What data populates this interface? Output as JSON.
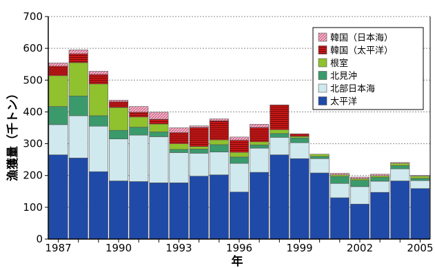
{
  "chart_data": {
    "type": "bar",
    "stacked": true,
    "xlabel": "年",
    "ylabel": "漁獲量（千トン）",
    "ylim": [
      0,
      700
    ],
    "yticks": [
      0,
      100,
      200,
      300,
      400,
      500,
      600,
      700
    ],
    "xtick_labels": [
      "1987",
      "1990",
      "1993",
      "1996",
      "1999",
      "2002",
      "2005"
    ],
    "grid": "horizontal-dashed",
    "legend_position": "top-right",
    "categories": [
      "1987",
      "1988",
      "1989",
      "1990",
      "1991",
      "1992",
      "1993",
      "1994",
      "1995",
      "1996",
      "1997",
      "1998",
      "1999",
      "2000",
      "2001",
      "2002",
      "2003",
      "2004",
      "2005"
    ],
    "series": [
      {
        "name": "太平洋",
        "color": "#1f4aa8",
        "values": [
          265,
          255,
          212,
          183,
          181,
          177,
          177,
          198,
          202,
          148,
          210,
          265,
          253,
          208,
          130,
          110,
          147,
          183,
          159
        ]
      },
      {
        "name": "北部日本海",
        "color": "#cfe9ee",
        "values": [
          95,
          133,
          143,
          132,
          146,
          145,
          95,
          72,
          72,
          90,
          76,
          55,
          50,
          45,
          45,
          55,
          35,
          38,
          25
        ]
      },
      {
        "name": "北見沖",
        "color": "#3a9a6c",
        "values": [
          57,
          62,
          33,
          27,
          25,
          15,
          10,
          13,
          23,
          20,
          10,
          12,
          15,
          7,
          22,
          20,
          12,
          10,
          7
        ]
      },
      {
        "name": "根室",
        "color": "#90c12e",
        "values": [
          97,
          105,
          100,
          72,
          32,
          25,
          18,
          8,
          15,
          15,
          10,
          12,
          5,
          7,
          5,
          5,
          5,
          7,
          7
        ]
      },
      {
        "name": "韓国（太平洋）",
        "color": "#c61818",
        "values": [
          30,
          28,
          30,
          18,
          15,
          15,
          35,
          60,
          60,
          38,
          45,
          78,
          8,
          0,
          0,
          0,
          0,
          0,
          0
        ]
      },
      {
        "name": "韓国（日本海）",
        "color": "#e68aa8",
        "values": [
          10,
          12,
          10,
          5,
          18,
          22,
          15,
          5,
          6,
          10,
          10,
          0,
          0,
          0,
          5,
          5,
          5,
          3,
          2
        ]
      }
    ]
  }
}
